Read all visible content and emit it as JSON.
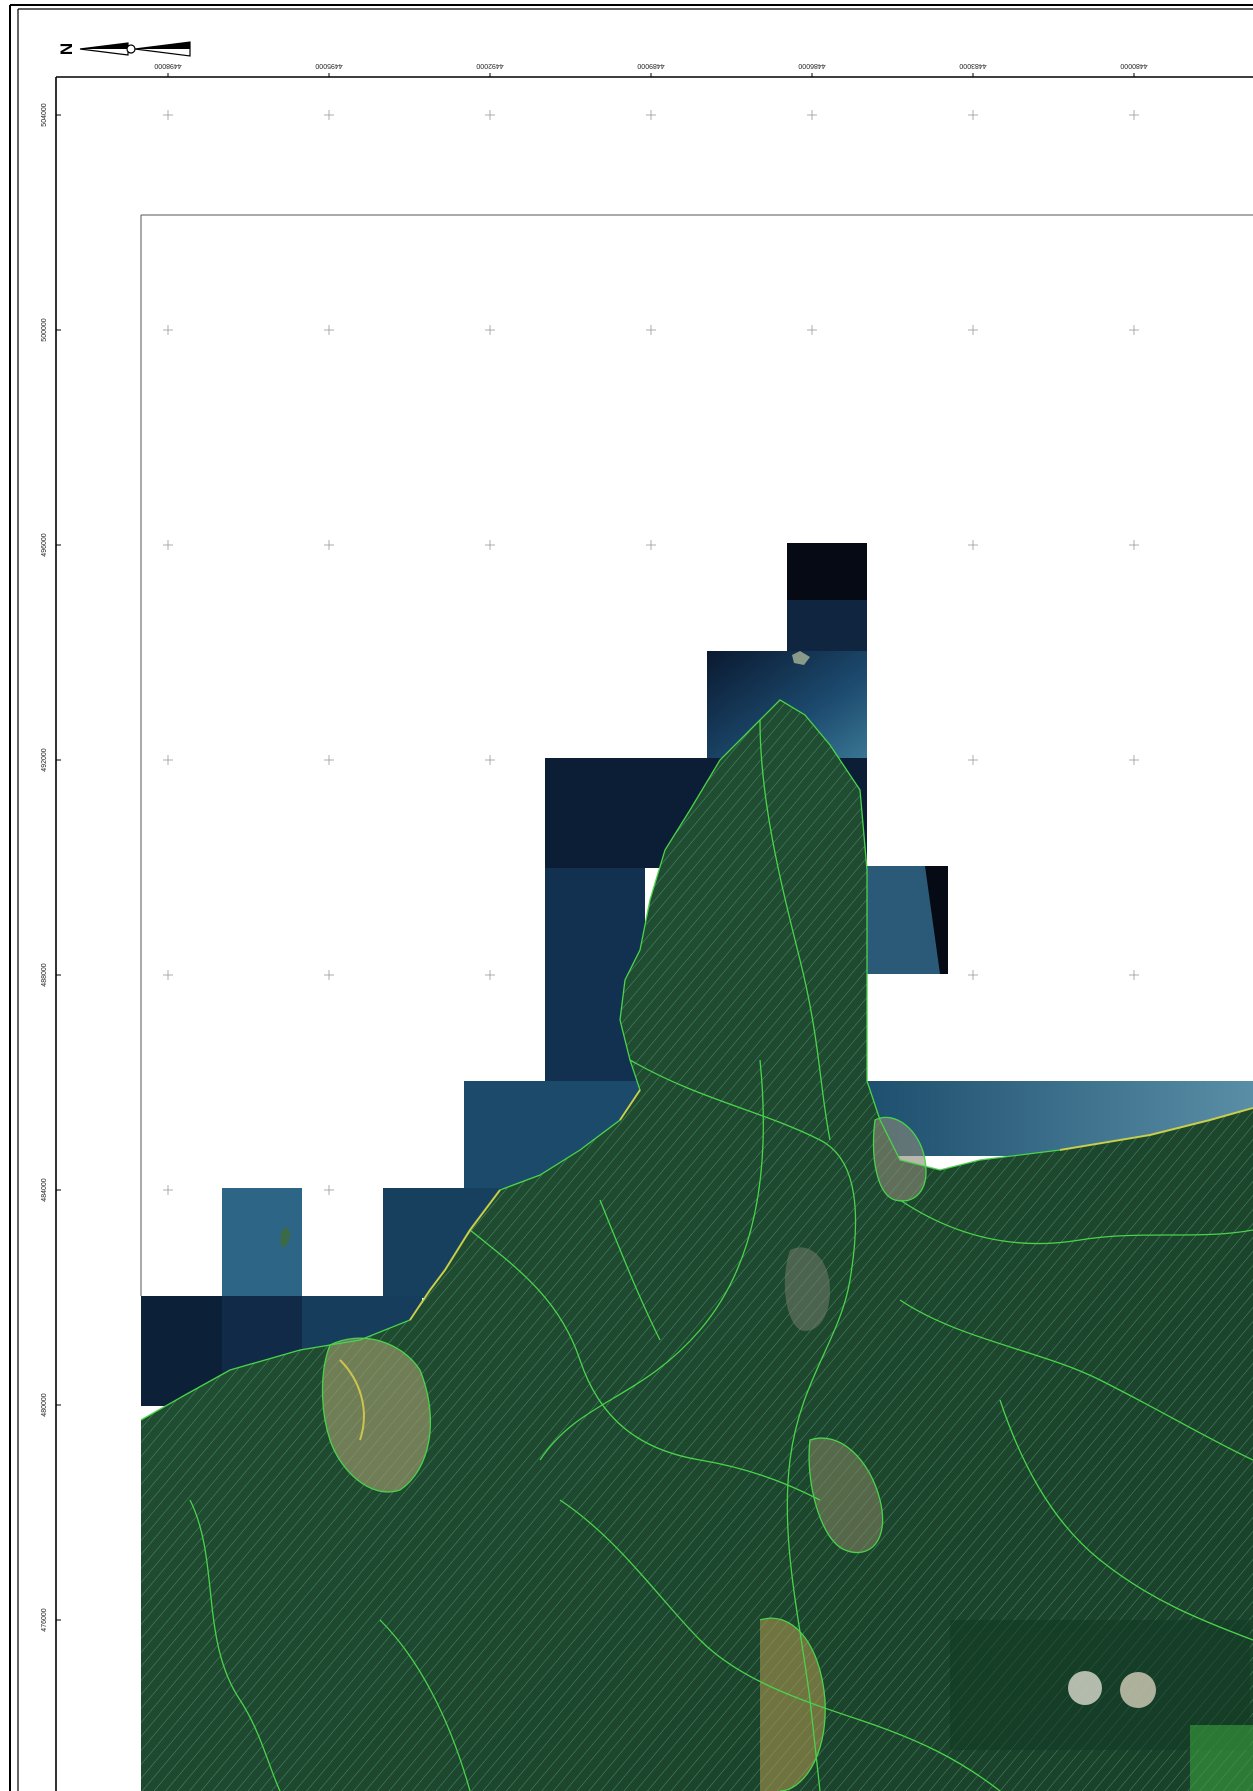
{
  "north_arrow": {
    "letter": "N"
  },
  "x_ticks": [
    "4498000",
    "4495000",
    "4492000",
    "4489000",
    "4486000",
    "4483000",
    "4480000"
  ],
  "y_ticks": [
    "504000",
    "500000",
    "496000",
    "492000",
    "488000",
    "484000",
    "480000",
    "476000"
  ],
  "colors": {
    "frame": "#000000",
    "graticule": "#9a9a9a",
    "sea_deep": "#0d1c33",
    "sea_shallow": "#2c5f7d",
    "land": "#1d4a2f",
    "hatch": "#5fd0a0",
    "boundary": "#4ad34a",
    "urban_yellow": "#d8c24a"
  }
}
